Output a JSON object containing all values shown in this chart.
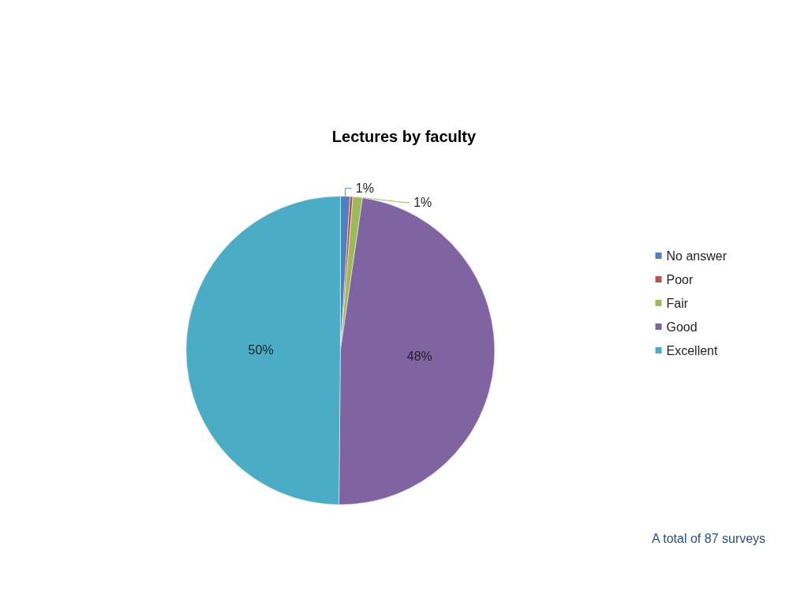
{
  "chart_data": {
    "type": "pie",
    "title": "Lectures by faculty",
    "categories": [
      "No answer",
      "Poor",
      "Fair",
      "Good",
      "Excellent"
    ],
    "values": [
      1,
      0.3,
      1,
      48,
      50
    ],
    "value_labels": [
      "1%",
      null,
      "1%",
      "48%",
      "50%"
    ],
    "colors": [
      "#4f81bd",
      "#c0504d",
      "#9bbb59",
      "#8064a2",
      "#4bacc6"
    ],
    "legend": "right",
    "annotations": [
      "A total of 87 surveys"
    ]
  }
}
